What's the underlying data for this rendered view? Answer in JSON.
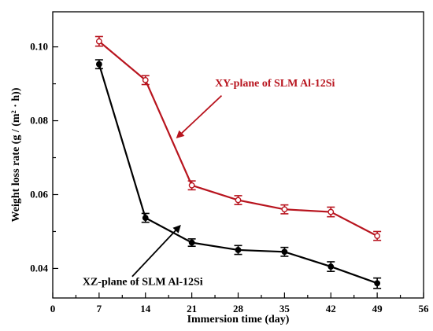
{
  "chart_data": {
    "type": "line",
    "xlabel": "Immersion time (day)",
    "ylabel": "Weight loss rate (g / (m² · h))",
    "xlim": [
      0,
      56
    ],
    "ylim": [
      0.032,
      0.1095
    ],
    "xticks": [
      0,
      7,
      14,
      21,
      28,
      35,
      42,
      49,
      56
    ],
    "xtick_labels": [
      "0",
      "7",
      "14",
      "21",
      "28",
      "35",
      "42",
      "49",
      "56"
    ],
    "yticks": [
      0.04,
      0.06,
      0.08,
      0.1
    ],
    "ytick_labels": [
      "0.04",
      "0.06",
      "0.08",
      "0.10"
    ],
    "grid": false,
    "series": [
      {
        "name": "XY-plane of SLM Al-12Si",
        "color": "#b8141e",
        "marker": "open-circle",
        "x": [
          7,
          14,
          21,
          28,
          35,
          42,
          49
        ],
        "values": [
          0.1015,
          0.091,
          0.0625,
          0.0585,
          0.056,
          0.0553,
          0.0488
        ],
        "errors": [
          0.0013,
          0.0012,
          0.0012,
          0.0012,
          0.0012,
          0.0013,
          0.0012
        ]
      },
      {
        "name": "XZ-plane of SLM Al-12Si",
        "color": "#000000",
        "marker": "filled-circle",
        "x": [
          7,
          14,
          21,
          28,
          35,
          42,
          49
        ],
        "values": [
          0.0953,
          0.0537,
          0.047,
          0.045,
          0.0445,
          0.0405,
          0.036
        ],
        "errors": [
          0.0012,
          0.0012,
          0.001,
          0.0012,
          0.0012,
          0.0013,
          0.0014
        ]
      }
    ],
    "annotations": [
      {
        "text": "XY-plane of SLM Al-12Si",
        "color": "#b8141e",
        "x": 24.5,
        "y": 0.0893,
        "arrow_to": [
          18.8,
          0.0755
        ],
        "arrow_from": [
          25.5,
          0.0868
        ]
      },
      {
        "text": "XZ-plane of SLM Al-12Si",
        "color": "#000000",
        "x": 4.5,
        "y": 0.0355,
        "arrow_to": [
          19.2,
          0.0515
        ],
        "arrow_from": [
          12.0,
          0.0378
        ]
      }
    ]
  }
}
